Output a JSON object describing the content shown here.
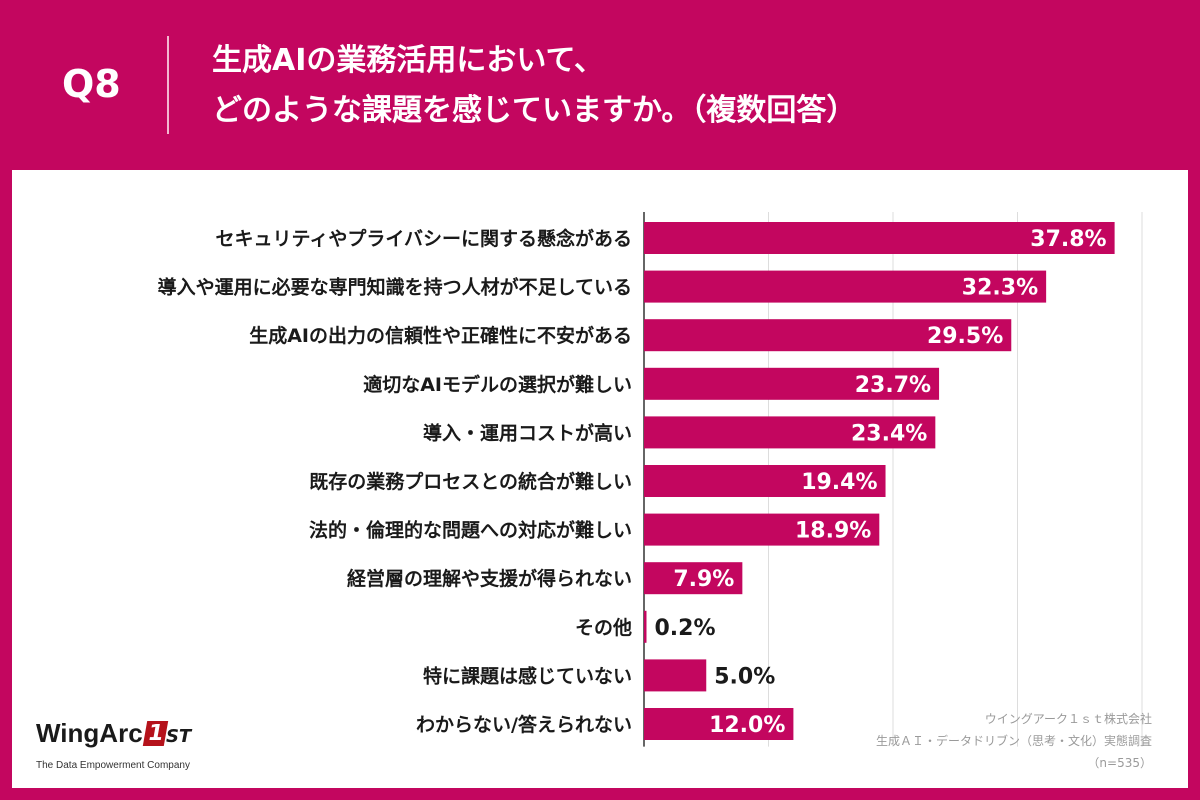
{
  "question": {
    "number": "Q8",
    "title_line1": "生成AIの業務活用において、",
    "title_line2": "どのような課題を感じていますか。（複数回答）"
  },
  "colors": {
    "brand": "#c3065f",
    "bar": "#c3065f",
    "bar_label_inside": "#ffffff",
    "bar_label_outside": "#1a1a1a"
  },
  "logo": {
    "name_part": "WingArc",
    "badge_part": "1",
    "suffix_part": "ST",
    "tagline": "The Data Empowerment Company"
  },
  "source": {
    "line1": "ウイングアーク１ｓｔ株式会社",
    "line2": "生成ＡＩ・データドリブン（思考・文化）実態調査",
    "line3": "（n=535）"
  },
  "chart_data": {
    "type": "bar",
    "orientation": "horizontal",
    "title": "生成AIの業務活用において、どのような課題を感じていますか。（複数回答）",
    "categories": [
      "セキュリティやプライバシーに関する懸念がある",
      "導入や運用に必要な専門知識を持つ人材が不足している",
      "生成AIの出力の信頼性や正確性に不安がある",
      "適切なAIモデルの選択が難しい",
      "導入・運用コストが高い",
      "既存の業務プロセスとの統合が難しい",
      "法的・倫理的な問題への対応が難しい",
      "経営層の理解や支援が得られない",
      "その他",
      "特に課題は感じていない",
      "わからない/答えられない"
    ],
    "values": [
      37.8,
      32.3,
      29.5,
      23.7,
      23.4,
      19.4,
      18.9,
      7.9,
      0.2,
      5.0,
      12.0
    ],
    "value_labels": [
      "37.8%",
      "32.3%",
      "29.5%",
      "23.7%",
      "23.4%",
      "19.4%",
      "18.9%",
      "7.9%",
      "0.2%",
      "5.0%",
      "12.0%"
    ],
    "label_inside": [
      true,
      true,
      true,
      true,
      true,
      true,
      true,
      true,
      false,
      false,
      true
    ],
    "xlim": [
      0,
      40
    ],
    "gridlines": [
      10,
      20,
      30,
      40
    ],
    "grid": true
  }
}
